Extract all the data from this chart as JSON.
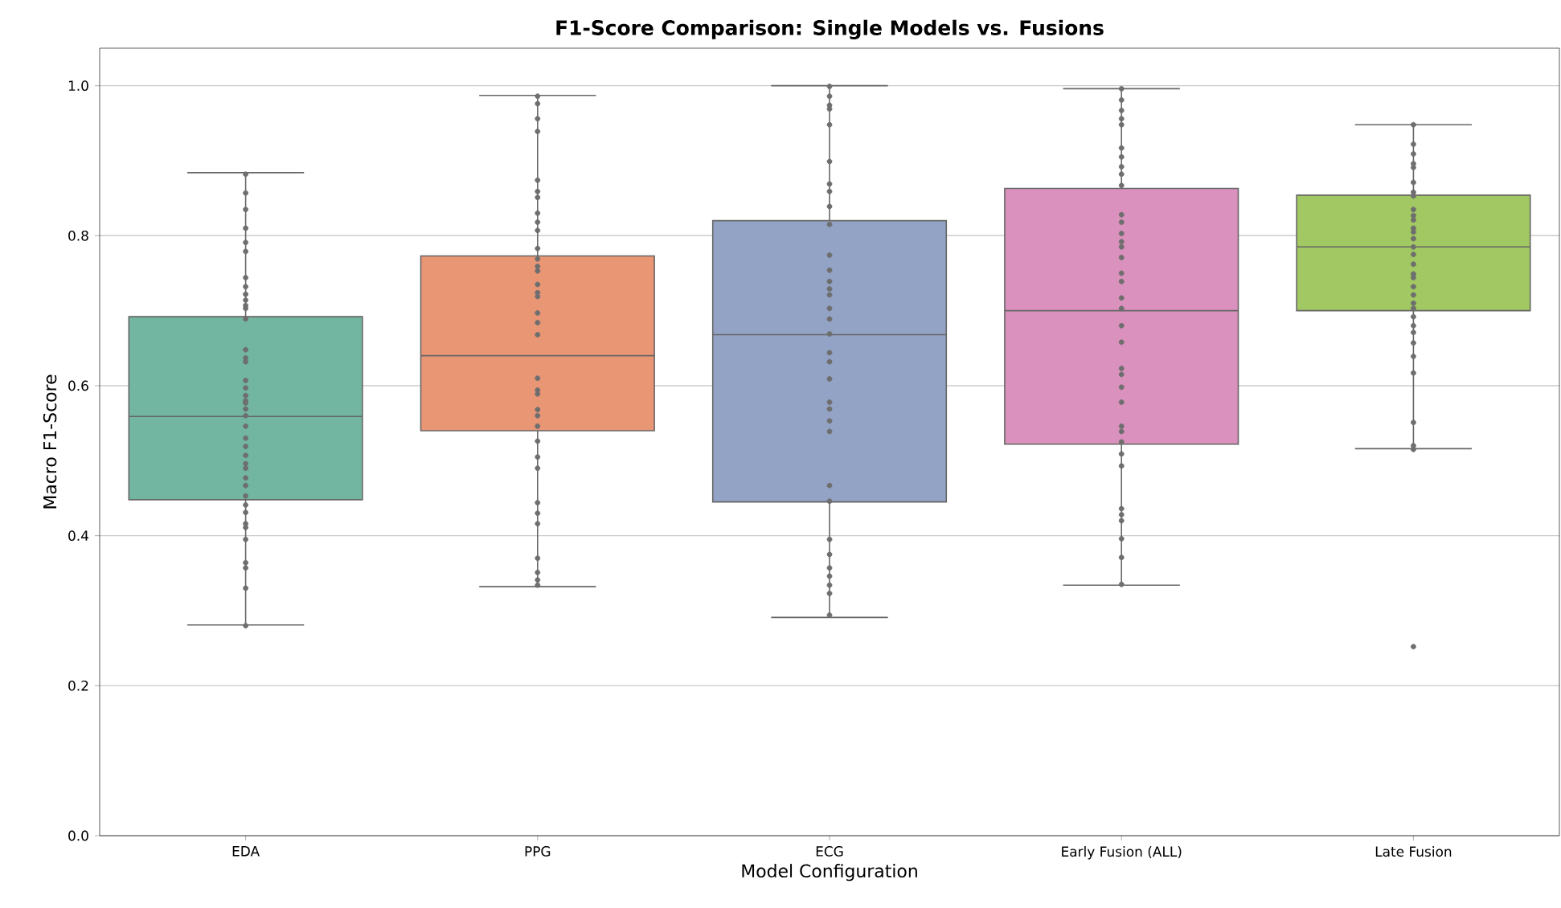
{
  "chart_data": {
    "type": "box",
    "title": "F1-Score Comparison: Single Models vs. Fusions",
    "xlabel": "Model Configuration",
    "ylabel": "Macro F1-Score",
    "categories": [
      "EDA",
      "PPG",
      "ECG",
      "Early Fusion (ALL)",
      "Late Fusion"
    ],
    "boxes": [
      {
        "low": 0.281,
        "q1": 0.448,
        "median": 0.559,
        "q3": 0.692,
        "high": 0.884
      },
      {
        "low": 0.332,
        "q1": 0.54,
        "median": 0.64,
        "q3": 0.773,
        "high": 0.987
      },
      {
        "low": 0.291,
        "q1": 0.445,
        "median": 0.668,
        "q3": 0.82,
        "high": 1.0
      },
      {
        "low": 0.334,
        "q1": 0.522,
        "median": 0.7,
        "q3": 0.863,
        "high": 0.996
      },
      {
        "low": 0.516,
        "q1": 0.7,
        "median": 0.785,
        "q3": 0.854,
        "high": 0.948
      }
    ],
    "colors": [
      "#72b6a1",
      "#e99675",
      "#93a3c5",
      "#db91bd",
      "#a1c862"
    ],
    "ylim": [
      0,
      1.05
    ],
    "yticks": [
      {
        "value": 0,
        "label": "0.0"
      },
      {
        "value": 0.2,
        "label": "0.2"
      },
      {
        "value": 0.4,
        "label": "0.4"
      },
      {
        "value": 0.6,
        "label": "0.6"
      },
      {
        "value": 0.8,
        "label": "0.8"
      },
      {
        "value": 1.0,
        "label": "1.0"
      }
    ],
    "grid": "y",
    "series": [
      {
        "type": "scatter",
        "color": "#6e6e6e",
        "marker": "circle",
        "x": [
          "EDA",
          "EDA",
          "EDA",
          "EDA",
          "EDA",
          "EDA",
          "EDA",
          "EDA",
          "EDA",
          "EDA",
          "EDA",
          "EDA",
          "EDA",
          "EDA",
          "EDA",
          "EDA",
          "EDA",
          "EDA",
          "EDA",
          "EDA",
          "EDA",
          "EDA",
          "EDA",
          "EDA",
          "EDA",
          "EDA",
          "EDA",
          "EDA",
          "EDA",
          "EDA",
          "EDA",
          "EDA",
          "EDA",
          "EDA",
          "EDA",
          "EDA",
          "EDA",
          "EDA",
          "EDA",
          "EDA",
          "EDA",
          "PPG",
          "PPG",
          "PPG",
          "PPG",
          "PPG",
          "PPG",
          "PPG",
          "PPG",
          "PPG",
          "PPG",
          "PPG",
          "PPG",
          "PPG",
          "PPG",
          "PPG",
          "PPG",
          "PPG",
          "PPG",
          "PPG",
          "PPG",
          "PPG",
          "PPG",
          "PPG",
          "PPG",
          "PPG",
          "PPG",
          "PPG",
          "PPG",
          "PPG",
          "PPG",
          "PPG",
          "PPG",
          "PPG",
          "PPG",
          "PPG",
          "PPG",
          "ECG",
          "ECG",
          "ECG",
          "ECG",
          "ECG",
          "ECG",
          "ECG",
          "ECG",
          "ECG",
          "ECG",
          "ECG",
          "ECG",
          "ECG",
          "ECG",
          "ECG",
          "ECG",
          "ECG",
          "ECG",
          "ECG",
          "ECG",
          "ECG",
          "ECG",
          "ECG",
          "ECG",
          "ECG",
          "ECG",
          "ECG",
          "ECG",
          "ECG",
          "ECG",
          "ECG",
          "ECG",
          "ECG",
          "ECG",
          "Early Fusion (ALL)",
          "Early Fusion (ALL)",
          "Early Fusion (ALL)",
          "Early Fusion (ALL)",
          "Early Fusion (ALL)",
          "Early Fusion (ALL)",
          "Early Fusion (ALL)",
          "Early Fusion (ALL)",
          "Early Fusion (ALL)",
          "Early Fusion (ALL)",
          "Early Fusion (ALL)",
          "Early Fusion (ALL)",
          "Early Fusion (ALL)",
          "Early Fusion (ALL)",
          "Early Fusion (ALL)",
          "Early Fusion (ALL)",
          "Early Fusion (ALL)",
          "Early Fusion (ALL)",
          "Early Fusion (ALL)",
          "Early Fusion (ALL)",
          "Early Fusion (ALL)",
          "Early Fusion (ALL)",
          "Early Fusion (ALL)",
          "Early Fusion (ALL)",
          "Early Fusion (ALL)",
          "Early Fusion (ALL)",
          "Early Fusion (ALL)",
          "Early Fusion (ALL)",
          "Early Fusion (ALL)",
          "Early Fusion (ALL)",
          "Early Fusion (ALL)",
          "Early Fusion (ALL)",
          "Early Fusion (ALL)",
          "Early Fusion (ALL)",
          "Early Fusion (ALL)",
          "Early Fusion (ALL)",
          "Early Fusion (ALL)",
          "Late Fusion",
          "Late Fusion",
          "Late Fusion",
          "Late Fusion",
          "Late Fusion",
          "Late Fusion",
          "Late Fusion",
          "Late Fusion",
          "Late Fusion",
          "Late Fusion",
          "Late Fusion",
          "Late Fusion",
          "Late Fusion",
          "Late Fusion",
          "Late Fusion",
          "Late Fusion",
          "Late Fusion",
          "Late Fusion",
          "Late Fusion",
          "Late Fusion",
          "Late Fusion",
          "Late Fusion",
          "Late Fusion",
          "Late Fusion",
          "Late Fusion",
          "Late Fusion",
          "Late Fusion",
          "Late Fusion",
          "Late Fusion",
          "Late Fusion",
          "Late Fusion",
          "Late Fusion",
          "Late Fusion"
        ],
        "values": [
          0.882,
          0.857,
          0.835,
          0.81,
          0.791,
          0.779,
          0.744,
          0.732,
          0.722,
          0.714,
          0.707,
          0.703,
          0.689,
          0.648,
          0.637,
          0.632,
          0.607,
          0.597,
          0.587,
          0.58,
          0.577,
          0.569,
          0.56,
          0.546,
          0.53,
          0.519,
          0.507,
          0.496,
          0.49,
          0.477,
          0.467,
          0.453,
          0.441,
          0.431,
          0.416,
          0.411,
          0.395,
          0.364,
          0.357,
          0.33,
          0.28,
          0.986,
          0.976,
          0.956,
          0.939,
          0.874,
          0.859,
          0.851,
          0.83,
          0.818,
          0.807,
          0.783,
          0.769,
          0.759,
          0.753,
          0.735,
          0.724,
          0.719,
          0.697,
          0.684,
          0.668,
          0.61,
          0.594,
          0.589,
          0.568,
          0.56,
          0.546,
          0.526,
          0.505,
          0.49,
          0.444,
          0.43,
          0.416,
          0.37,
          0.351,
          0.341,
          0.334,
          0.999,
          0.986,
          0.974,
          0.969,
          0.948,
          0.899,
          0.869,
          0.859,
          0.839,
          0.815,
          0.774,
          0.754,
          0.739,
          0.729,
          0.721,
          0.703,
          0.689,
          0.669,
          0.644,
          0.632,
          0.609,
          0.578,
          0.569,
          0.553,
          0.539,
          0.467,
          0.446,
          0.395,
          0.375,
          0.357,
          0.346,
          0.334,
          0.323,
          0.294,
          0.996,
          0.981,
          0.967,
          0.956,
          0.948,
          0.917,
          0.905,
          0.892,
          0.882,
          0.867,
          0.828,
          0.818,
          0.803,
          0.792,
          0.785,
          0.771,
          0.75,
          0.739,
          0.717,
          0.703,
          0.68,
          0.658,
          0.623,
          0.615,
          0.598,
          0.578,
          0.546,
          0.539,
          0.525,
          0.509,
          0.493,
          0.436,
          0.428,
          0.42,
          0.396,
          0.371,
          0.335,
          0.948,
          0.922,
          0.909,
          0.896,
          0.891,
          0.871,
          0.858,
          0.853,
          0.835,
          0.827,
          0.821,
          0.81,
          0.805,
          0.796,
          0.785,
          0.775,
          0.762,
          0.749,
          0.744,
          0.732,
          0.721,
          0.71,
          0.703,
          0.692,
          0.68,
          0.671,
          0.657,
          0.639,
          0.617,
          0.551,
          0.52,
          0.515,
          0.252
        ]
      }
    ]
  }
}
